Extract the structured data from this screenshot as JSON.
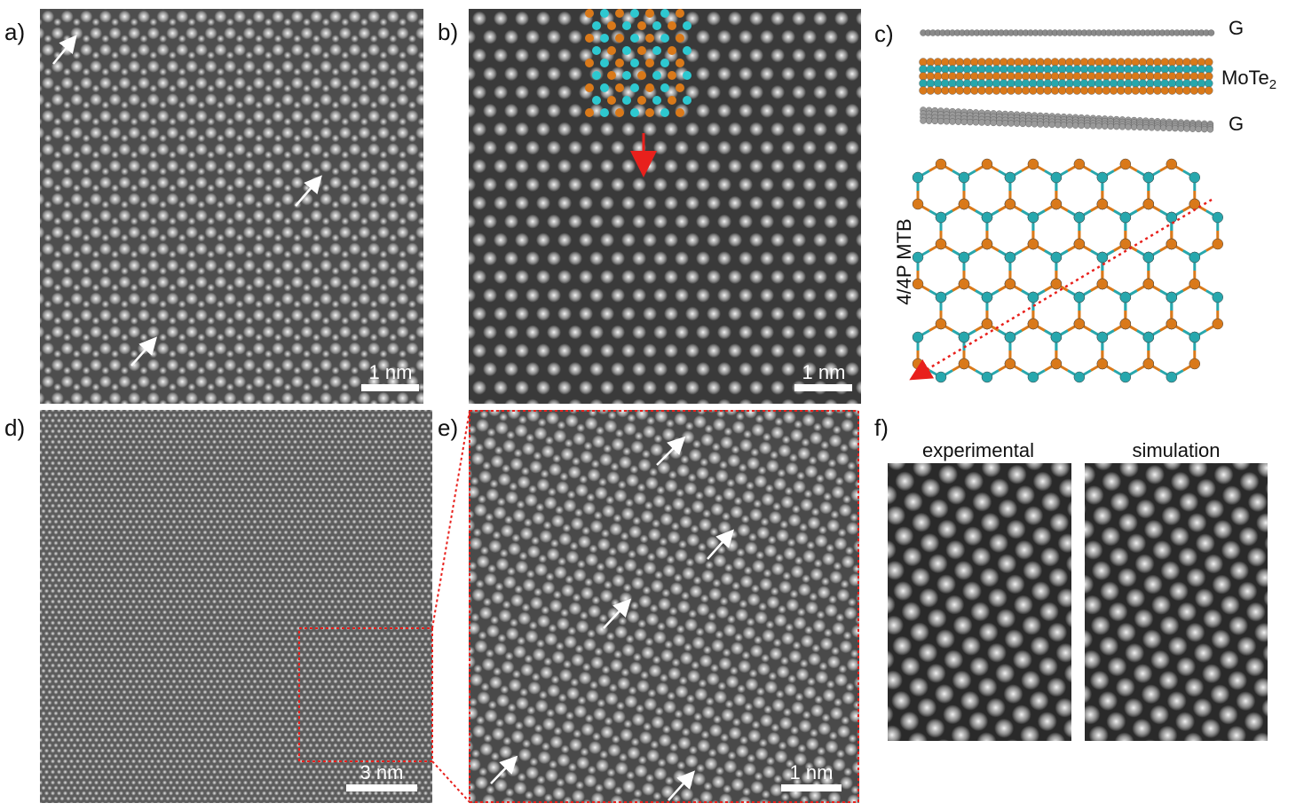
{
  "panels": [
    {
      "label": "a)",
      "scale_bar": "1 nm"
    },
    {
      "label": "b)",
      "scale_bar": "1 nm"
    },
    {
      "label": "c)",
      "layers": [
        {
          "text": "G"
        },
        {
          "text": "MoTe",
          "subscript": "2"
        },
        {
          "text": "G"
        }
      ],
      "boundary_label": "4/4P MTB"
    },
    {
      "label": "d)",
      "scale_bar": "3 nm"
    },
    {
      "label": "e)",
      "scale_bar": "1 nm"
    },
    {
      "label": "f)",
      "images": [
        "experimental",
        "simulation"
      ]
    }
  ]
}
